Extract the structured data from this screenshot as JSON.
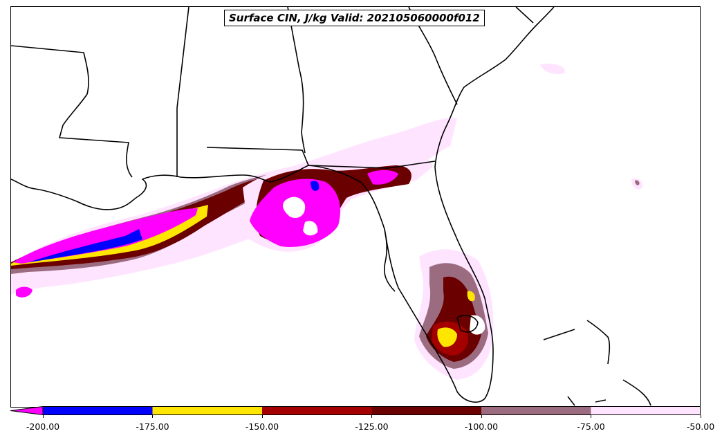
{
  "title": "Surface CIN, J/kg Valid: 202105060000f012",
  "colorbar": {
    "extend": "min",
    "under_color": "#ff00ff",
    "bins": [
      {
        "from": -200,
        "to": -175,
        "color": "#0000ff"
      },
      {
        "from": -175,
        "to": -150,
        "color": "#ffe600"
      },
      {
        "from": -150,
        "to": -125,
        "color": "#a50000"
      },
      {
        "from": -125,
        "to": -100,
        "color": "#6b0000"
      },
      {
        "from": -100,
        "to": -75,
        "color": "#9b6b80"
      },
      {
        "from": -75,
        "to": -50,
        "color": "#ffe4ff"
      }
    ],
    "tick_labels": [
      "-200.00",
      "-175.00",
      "-150.00",
      "-125.00",
      "-100.00",
      "-75.00",
      "-50.00"
    ]
  },
  "colors": {
    "coastline": "#000000",
    "state_border": "#000000",
    "background": "#ffffff"
  }
}
